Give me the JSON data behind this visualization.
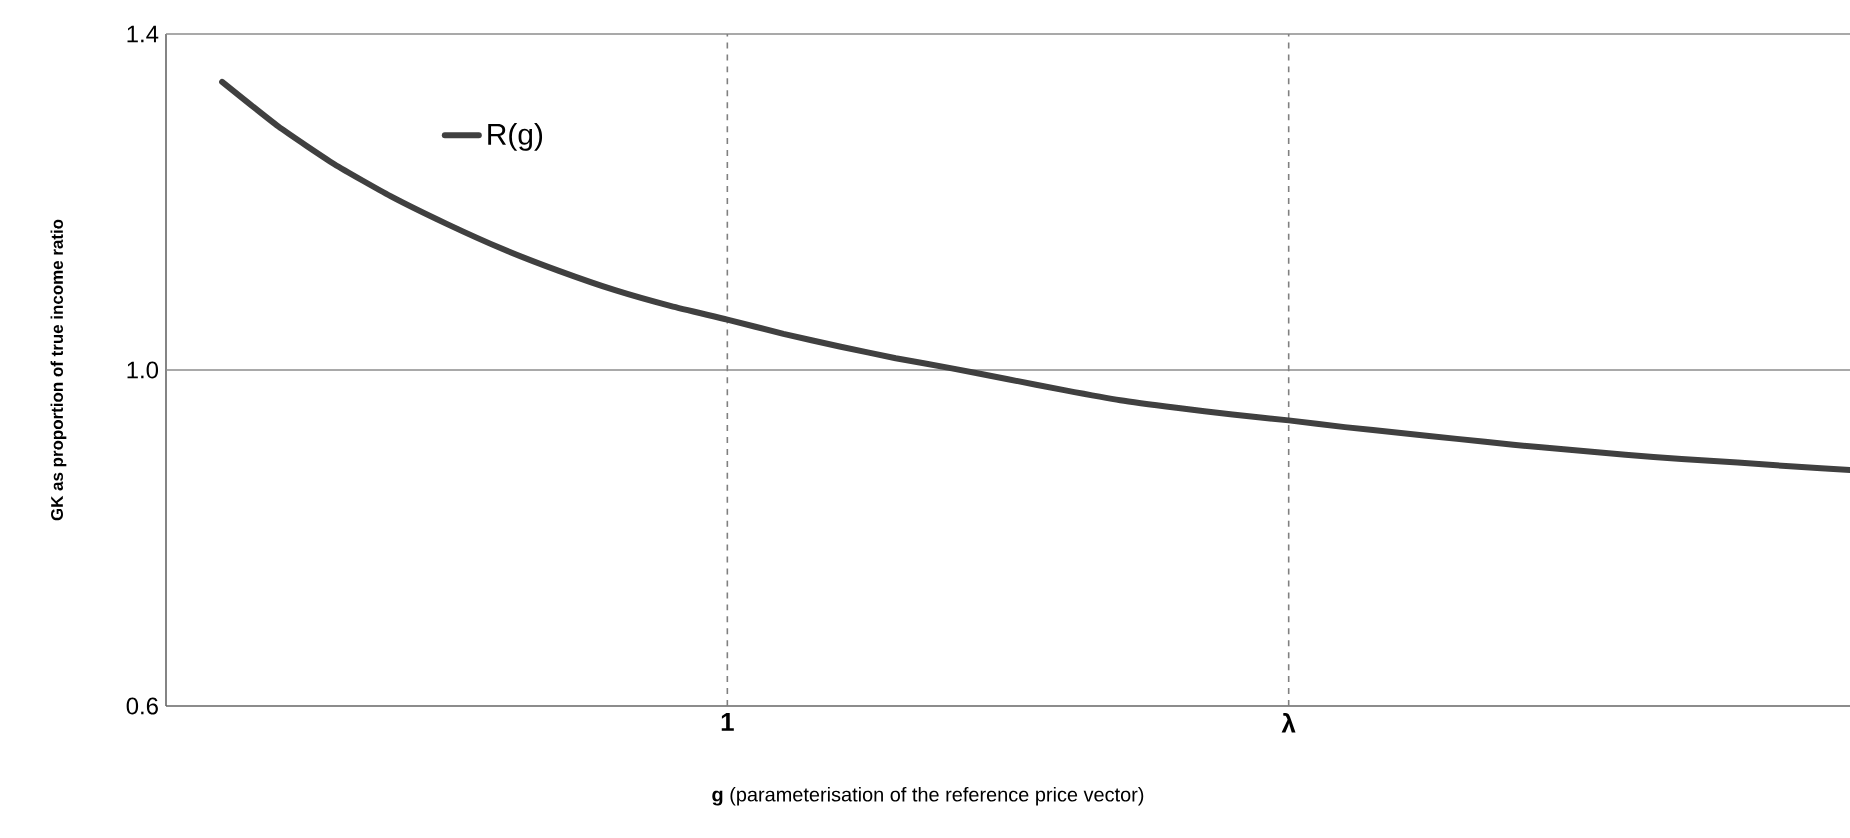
{
  "chart_data": {
    "type": "line",
    "xlabel": "**g**  (parameterisation of the reference price vector)",
    "ylabel": "GK as proportion of true income ratio",
    "categories": [
      null,
      null,
      null,
      null,
      null,
      null,
      null,
      null,
      null,
      "1",
      null,
      null,
      null,
      null,
      null,
      null,
      null,
      null,
      null,
      "λ",
      null,
      null,
      null,
      null,
      null,
      null,
      null,
      null,
      null,
      null
    ],
    "ylim": [
      0.6,
      1.4
    ],
    "yticks": [
      0.6,
      {
        "value": 1,
        "label": "1.0"
      },
      1.4
    ],
    "legend": "top left",
    "marker": "none",
    "line_style": "solid",
    "series": [
      {
        "name": "R(g)",
        "color": "#404040",
        "values": [
          1.343,
          1.29,
          1.245,
          1.207,
          1.174,
          1.144,
          1.118,
          1.095,
          1.076,
          1.06,
          1.043,
          1.028,
          1.014,
          1.002,
          0.989,
          0.976,
          0.964,
          0.955,
          0.947,
          0.94,
          0.932,
          0.925,
          0.918,
          0.911,
          0.905,
          0.899,
          0.894,
          0.89,
          0.885,
          0.881
        ]
      }
    ],
    "ref_lines": [
      {
        "axis": "y",
        "value": 1,
        "color": "#8c8c8c",
        "line_style": "solid"
      },
      {
        "axis": "y",
        "value": 1.4,
        "color": "#8c8c8c",
        "line_style": "solid"
      },
      {
        "axis": "x",
        "value": "1",
        "color": "#808080",
        "line_style": "dashed"
      },
      {
        "axis": "x",
        "value": "λ",
        "color": "#808080",
        "line_style": "dashed"
      }
    ]
  }
}
